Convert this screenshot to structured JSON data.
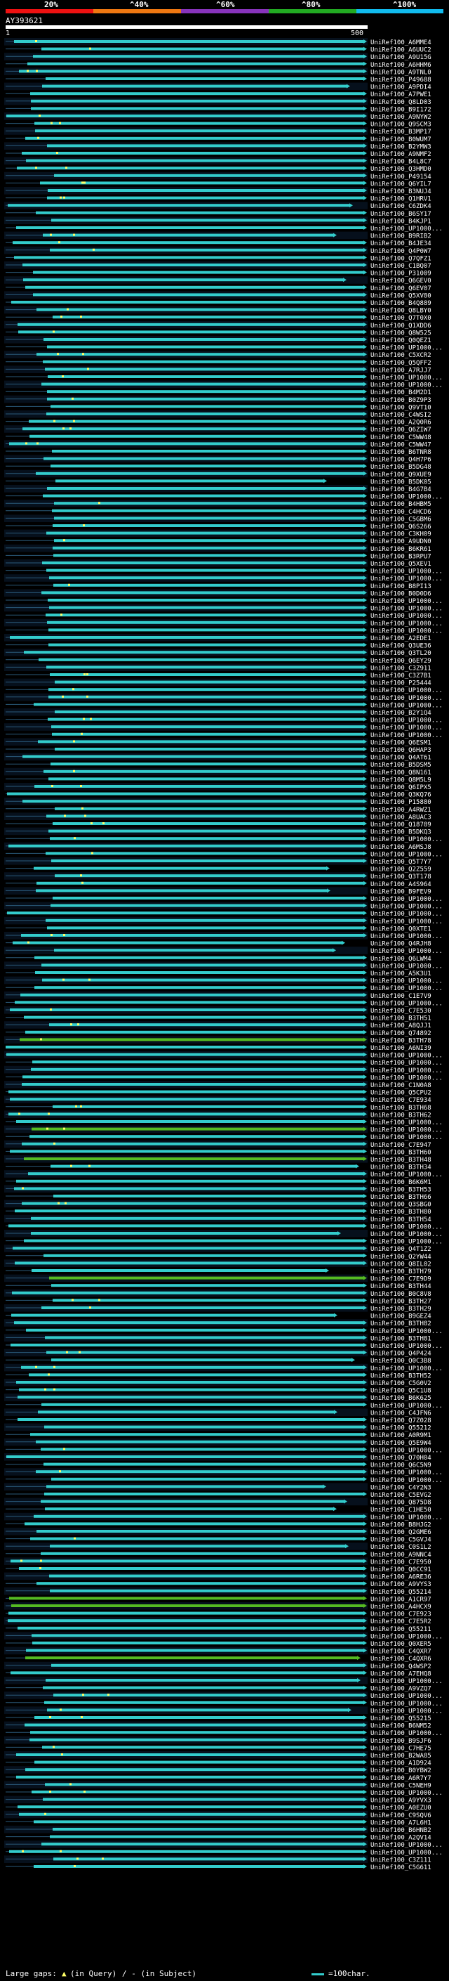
{
  "header": {
    "percent_labels": [
      "20%",
      "^40%",
      "^60%",
      "^80%",
      "^100%"
    ],
    "color_segments": [
      "#ee1111",
      "#ee7711",
      "#8833bb",
      "#22aa22",
      "#11bbee"
    ],
    "query_id": "AY393621",
    "scale_start": "1",
    "scale_end": "500"
  },
  "palette": {
    "green": "#55bb22",
    "cyan": "#33cccc",
    "gap_marker": "#ffff66"
  },
  "hits": [
    "UniRef100_A6MME4",
    "UniRef100_A6UUC2",
    "UniRef100_A9U15G",
    "UniRef100_A6HHM6",
    "UniRef100_A9TNL0",
    "UniRef100_P49688",
    "UniRef100_A9PDI4",
    "UniRef100_A7PWE1",
    "UniRef100_Q8LD03",
    "UniRef100_B9I172",
    "UniRef100_A9NYW2",
    "UniRef100_Q9SCM3",
    "UniRef100_B3MP17",
    "UniRef100_B0WUM7",
    "UniRef100_B2YMW3",
    "UniRef100_A9NMF2",
    "UniRef100_B4L8C7",
    "UniRef100_Q3HMD0",
    "UniRef100_P49154",
    "UniRef100_Q6YIL7",
    "UniRef100_B3NUJ4",
    "UniRef100_Q1HRV1",
    "UniRef100_C6ZDK4",
    "UniRef100_B6SY17",
    "UniRef100_B4KJP1",
    "UniRef100_UP1000...",
    "UniRef100_B9RIB2",
    "UniRef100_B4JE34",
    "UniRef100_Q4P0W7",
    "UniRef100_Q7QFZ1",
    "UniRef100_C1BQ07",
    "UniRef100_P31009",
    "UniRef100_Q6GEV0",
    "UniRef100_Q6EV07",
    "UniRef100_Q5XV80",
    "UniRef100_B4Q889",
    "UniRef100_Q8LBY0",
    "UniRef100_Q7T0X0",
    "UniRef100_Q1XDD6",
    "UniRef100_Q8W525",
    "UniRef100_Q0QEZ1",
    "UniRef100_UP1000...",
    "UniRef100_C5XCR2",
    "UniRef100_Q5QFF2",
    "UniRef100_A7RJJ7",
    "UniRef100_UP1000...",
    "UniRef100_UP1000...",
    "UniRef100_B4M2D1",
    "UniRef100_B0Z9P3",
    "UniRef100_Q9VT10",
    "UniRef100_C4WSI2",
    "UniRef100_A2Q0R6",
    "UniRef100_Q6ZIW7",
    "UniRef100_C5WW48",
    "UniRef100_C5WW47",
    "UniRef100_B6TNR8",
    "UniRef100_Q4H7P6",
    "UniRef100_B5DG48",
    "UniRef100_Q9XUE9",
    "UniRef100_B5DK05",
    "UniRef100_B4G7B4",
    "UniRef100_UP1000...",
    "UniRef100_B4HBM5",
    "UniRef100_C4HCD6",
    "UniRef100_C5GBM6",
    "UniRef100_Q6S266",
    "UniRef100_C3KH09",
    "UniRef100_A9UDN0",
    "UniRef100_B6KR61",
    "UniRef100_B3RPU7",
    "UniRef100_Q5XEV1",
    "UniRef100_UP1000...",
    "UniRef100_UP1000...",
    "UniRef100_B8PI13",
    "UniRef100_B0D0D6",
    "UniRef100_UP1000...",
    "UniRef100_UP1000...",
    "UniRef100_UP1000...",
    "UniRef100_UP1000...",
    "UniRef100_UP1000...",
    "UniRef100_A2EDE1",
    "UniRef100_Q3UE36",
    "UniRef100_Q3TL20",
    "UniRef100_Q6EY29",
    "UniRef100_C3Z911",
    "UniRef100_C3Z7B1",
    "UniRef100_P25444",
    "UniRef100_UP1000...",
    "UniRef100_UP1000...",
    "UniRef100_UP1000...",
    "UniRef100_B2Y1Q4",
    "UniRef100_UP1000...",
    "UniRef100_UP1000...",
    "UniRef100_UP1000...",
    "UniRef100_Q6ESM1",
    "UniRef100_Q6HAP3",
    "UniRef100_Q4AT61",
    "UniRef100_B5DSM5",
    "UniRef100_Q8N161",
    "UniRef100_Q8M5L9",
    "UniRef100_Q6IPX5",
    "UniRef100_Q3KQ76",
    "UniRef100_P15880",
    "UniRef100_A4RWZ1",
    "UniRef100_A8UAC3",
    "UniRef100_Q18789",
    "UniRef100_B5DKQ3",
    "UniRef100_UP1000...",
    "UniRef100_A6MSJ8",
    "UniRef100_UP1000...",
    "UniRef100_Q5T7Y7",
    "UniRef100_Q2Z559",
    "UniRef100_Q3T178",
    "UniRef100_A4S964",
    "UniRef100_B9FEV9",
    "UniRef100_UP1000...",
    "UniRef100_UP1000...",
    "UniRef100_UP1000...",
    "UniRef100_UP1000...",
    "UniRef100_Q0XTE1",
    "UniRef100_UP1000...",
    "UniRef100_Q4RJH8",
    "UniRef100_UP1000...",
    "UniRef100_Q6LWM4",
    "UniRef100_UP1000...",
    "UniRef100_A5K3U1",
    "UniRef100_UP1000...",
    "UniRef100_UP1000...",
    "UniRef100_C1E7V9",
    "UniRef100_UP1000...",
    "UniRef100_C7E530",
    "UniRef100_B3TH51",
    "UniRef100_A8QJJ1",
    "UniRef100_Q74892",
    "UniRef100_B3TH78",
    "UniRef100_A6NI39",
    "UniRef100_UP1000...",
    "UniRef100_UP1000...",
    "UniRef100_UP1000...",
    "UniRef100_UP1000...",
    "UniRef100_C1N0A8",
    "UniRef100_Q5CPU2",
    "UniRef100_C7E934",
    "UniRef100_B3TH68",
    "UniRef100_B3TH62",
    "UniRef100_UP1000...",
    "UniRef100_UP1000...",
    "UniRef100_UP1000...",
    "UniRef100_C7E947",
    "UniRef100_B3TH60",
    "UniRef100_B3TH48",
    "UniRef100_B3TH34",
    "UniRef100_UP1000...",
    "UniRef100_B6K6M1",
    "UniRef100_B3TH53",
    "UniRef100_B3TH66",
    "UniRef100_Q3SBG0",
    "UniRef100_B3TH80",
    "UniRef100_B3TH54",
    "UniRef100_UP1000...",
    "UniRef100_UP1000...",
    "UniRef100_UP1000...",
    "UniRef100_Q4T1Z2",
    "UniRef100_Q2YW44",
    "UniRef100_Q8IL02",
    "UniRef100_B3TH79",
    "UniRef100_C7E9D9",
    "UniRef100_B3TH44",
    "UniRef100_B0C8V8",
    "UniRef100_B3TH27",
    "UniRef100_B3TH29",
    "UniRef100_B9GEZ4",
    "UniRef100_B3TH82",
    "UniRef100_UP1000...",
    "UniRef100_B3TH81",
    "UniRef100_UP1000...",
    "UniRef100_Q4P424",
    "UniRef100_Q0C3B8",
    "UniRef100_UP1000...",
    "UniRef100_B3TH52",
    "UniRef100_C5G0V2",
    "UniRef100_Q5C1U8",
    "UniRef100_B6K625",
    "UniRef100_UP1000...",
    "UniRef100_C4JFN6",
    "UniRef100_Q7Z028",
    "UniRef100_Q55212",
    "UniRef100_A0R9M1",
    "UniRef100_Q5E9W4",
    "UniRef100_UP1000...",
    "UniRef100_Q70H04",
    "UniRef100_Q6C5N9",
    "UniRef100_UP1000...",
    "UniRef100_UP1000...",
    "UniRef100_C4Y2N3",
    "UniRef100_C5EVG2",
    "UniRef100_Q875D8",
    "UniRef100_C1HE50",
    "UniRef100_UP1000...",
    "UniRef100_B8HJG2",
    "UniRef100_Q2GME6",
    "UniRef100_C5GVJ4",
    "UniRef100_C0S1L2",
    "UniRef100_A9NNC4",
    "UniRef100_C7E950",
    "UniRef100_Q0CC91",
    "UniRef100_A6RE36",
    "UniRef100_A9VYS3",
    "UniRef100_Q55214",
    "UniRef100_A1CR97",
    "UniRef100_A4HCX9",
    "UniRef100_C7E923",
    "UniRef100_C7E5R2",
    "UniRef100_Q55211",
    "UniRef100_UP1000...",
    "UniRef100_Q0XER5",
    "UniRef100_C4QXR7",
    "UniRef100_C4QXR6",
    "UniRef100_Q4WSP2",
    "UniRef100_A7EHQ8",
    "UniRef100_UP1000...",
    "UniRef100_A9VZQ7",
    "UniRef100_UP1000...",
    "UniRef100_UP1000...",
    "UniRef100_UP1000...",
    "UniRef100_Q55215",
    "UniRef100_B6NM52",
    "UniRef100_UP1000...",
    "UniRef100_B9SJF6",
    "UniRef100_C7HE75",
    "UniRef100_B2WA85",
    "UniRef100_A1D924",
    "UniRef100_B0YBW2",
    "UniRef100_A6R7Y7",
    "UniRef100_C5NEH9",
    "UniRef100_UP1000...",
    "UniRef100_A9YVX3",
    "UniRef100_A0EZU0",
    "UniRef100_C9SQV6",
    "UniRef100_A7L6H1",
    "UniRef100_B6HNB2",
    "UniRef100_A2QV14",
    "UniRef100_UP1000...",
    "UniRef100_UP1000...",
    "UniRef100_C3Z111",
    "UniRef100_C5G611"
  ],
  "footer": {
    "large_gaps_label": "Large gaps:",
    "in_query": "(in Query)",
    "in_subject": "/ - (in Subject)",
    "scale_note": "=100char."
  }
}
